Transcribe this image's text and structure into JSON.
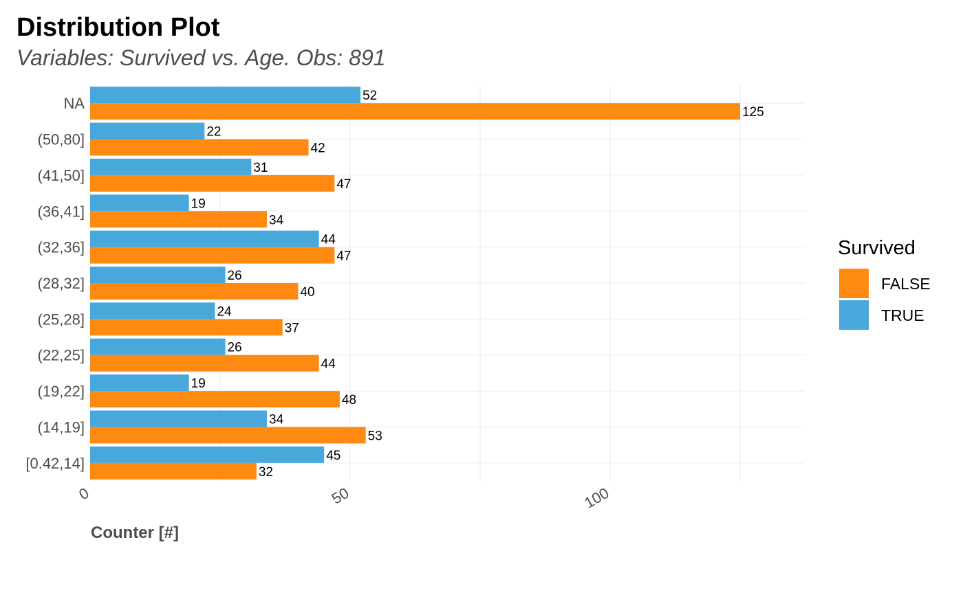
{
  "chart_data": {
    "type": "bar",
    "orientation": "horizontal",
    "title": "Distribution Plot",
    "subtitle": "Variables: Survived vs. Age. Obs: 891",
    "xlabel": "Counter [#]",
    "ylabel": "",
    "categories": [
      "[0.42,14]",
      "(14,19]",
      "(19,22]",
      "(22,25]",
      "(25,28]",
      "(28,32]",
      "(32,36]",
      "(36,41]",
      "(41,50]",
      "(50,80]",
      "NA"
    ],
    "series": [
      {
        "name": "FALSE",
        "color": "#FF8A12",
        "values": [
          32,
          53,
          48,
          44,
          37,
          40,
          47,
          34,
          47,
          42,
          125
        ]
      },
      {
        "name": "TRUE",
        "color": "#48A7DB",
        "values": [
          45,
          34,
          19,
          26,
          24,
          26,
          44,
          19,
          31,
          22,
          52
        ]
      }
    ],
    "xlim": [
      0,
      137.5
    ],
    "xticks": [
      0,
      50,
      100
    ],
    "xtick_labels": [
      "0",
      "50",
      "100"
    ],
    "grid": true,
    "legend": {
      "title": "Survived",
      "placement": "right",
      "items": [
        "FALSE",
        "TRUE"
      ]
    }
  }
}
